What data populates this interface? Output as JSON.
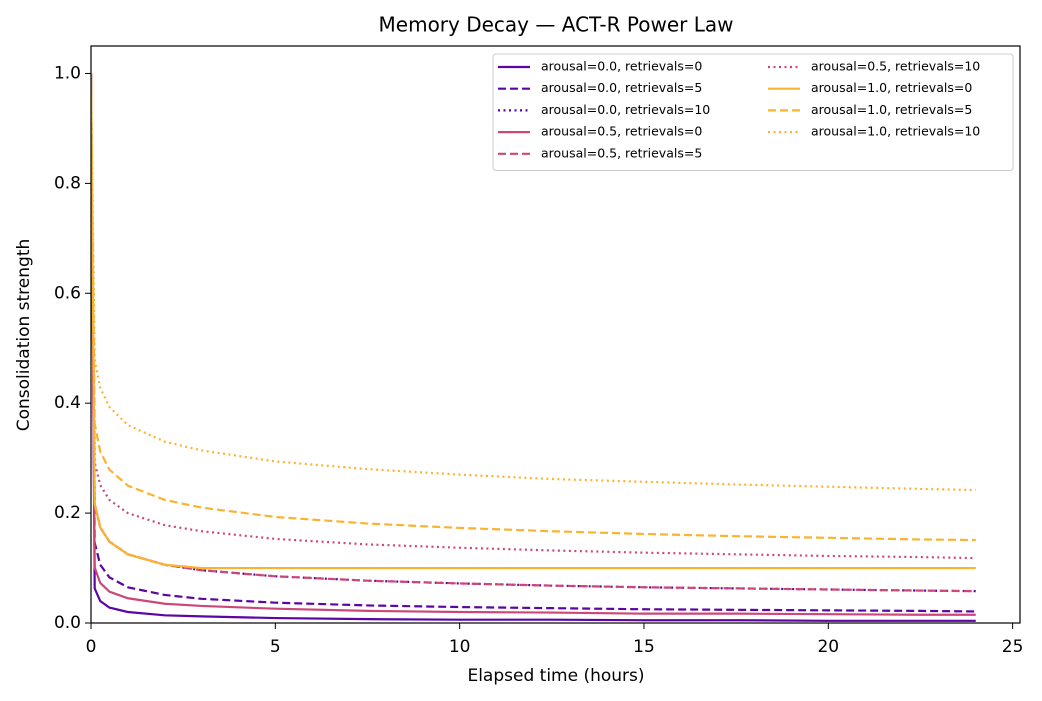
{
  "chart_data": {
    "type": "line",
    "title": "Memory Decay — ACT-R Power Law",
    "x_label": "Elapsed time (hours)",
    "y_label": "Consolidation strength",
    "x": [
      0,
      0.1,
      0.25,
      0.5,
      1,
      2,
      3,
      5,
      7.5,
      10,
      12.5,
      15,
      17.5,
      20,
      22.5,
      24
    ],
    "series": [
      {
        "name": "arousal=0.0, retrievals=0",
        "color": "#5c04a4",
        "dash": "solid",
        "values": [
          1.0,
          0.063,
          0.04,
          0.028,
          0.02,
          0.014,
          0.012,
          0.009,
          0.007,
          0.006,
          0.006,
          0.005,
          0.005,
          0.004,
          0.004,
          0.004
        ]
      },
      {
        "name": "arousal=0.0, retrievals=5",
        "color": "#5c04a4",
        "dash": "dashed",
        "values": [
          1.0,
          0.146,
          0.106,
          0.083,
          0.065,
          0.051,
          0.044,
          0.037,
          0.032,
          0.029,
          0.027,
          0.025,
          0.024,
          0.023,
          0.022,
          0.021
        ]
      },
      {
        "name": "arousal=0.0, retrievals=10",
        "color": "#5c04a4",
        "dash": "dotted",
        "values": [
          1.0,
          0.217,
          0.174,
          0.148,
          0.125,
          0.106,
          0.096,
          0.085,
          0.077,
          0.072,
          0.068,
          0.065,
          0.063,
          0.061,
          0.059,
          0.058
        ]
      },
      {
        "name": "arousal=0.5, retrievals=0",
        "color": "#cc4778",
        "dash": "solid",
        "values": [
          1.0,
          0.101,
          0.073,
          0.057,
          0.045,
          0.035,
          0.031,
          0.026,
          0.022,
          0.02,
          0.019,
          0.017,
          0.017,
          0.016,
          0.015,
          0.015
        ]
      },
      {
        "name": "arousal=0.5, retrievals=5",
        "color": "#cc4778",
        "dash": "dashed",
        "values": [
          1.0,
          0.217,
          0.174,
          0.148,
          0.125,
          0.106,
          0.096,
          0.085,
          0.077,
          0.072,
          0.068,
          0.065,
          0.063,
          0.061,
          0.059,
          0.058
        ]
      },
      {
        "name": "arousal=0.5, retrievals=10",
        "color": "#cc4778",
        "dash": "dotted",
        "values": [
          1.0,
          0.292,
          0.251,
          0.224,
          0.2,
          0.178,
          0.167,
          0.153,
          0.143,
          0.137,
          0.132,
          0.128,
          0.125,
          0.122,
          0.12,
          0.118
        ]
      },
      {
        "name": "arousal=1.0, retrievals=0",
        "color": "#fbb32f",
        "dash": "solid",
        "values": [
          1.0,
          0.217,
          0.174,
          0.148,
          0.125,
          0.106,
          0.1,
          0.1,
          0.1,
          0.1,
          0.1,
          0.1,
          0.1,
          0.1,
          0.1,
          0.1
        ]
      },
      {
        "name": "arousal=1.0, retrievals=5",
        "color": "#fbb32f",
        "dash": "dashed",
        "values": [
          1.0,
          0.363,
          0.312,
          0.279,
          0.25,
          0.224,
          0.21,
          0.193,
          0.181,
          0.173,
          0.167,
          0.162,
          0.158,
          0.155,
          0.152,
          0.151
        ]
      },
      {
        "name": "arousal=1.0, retrievals=10",
        "color": "#fbb32f",
        "dash": "dotted",
        "values": [
          1.0,
          0.48,
          0.428,
          0.393,
          0.36,
          0.33,
          0.314,
          0.294,
          0.28,
          0.27,
          0.262,
          0.257,
          0.252,
          0.248,
          0.244,
          0.242
        ]
      }
    ],
    "xlim": [
      0,
      25.2
    ],
    "ylim": [
      0,
      1.05
    ],
    "xticks": [
      0,
      5,
      10,
      15,
      20,
      25
    ],
    "yticks": [
      {
        "value": 0,
        "label": "0.0"
      },
      {
        "value": 0.2,
        "label": "0.2"
      },
      {
        "value": 0.4,
        "label": "0.4"
      },
      {
        "value": 0.6,
        "label": "0.6"
      },
      {
        "value": 0.8,
        "label": "0.8"
      },
      {
        "value": 1.0,
        "label": "1.0"
      }
    ],
    "legend": "upper right",
    "legend_columns": 2,
    "grid": false
  }
}
